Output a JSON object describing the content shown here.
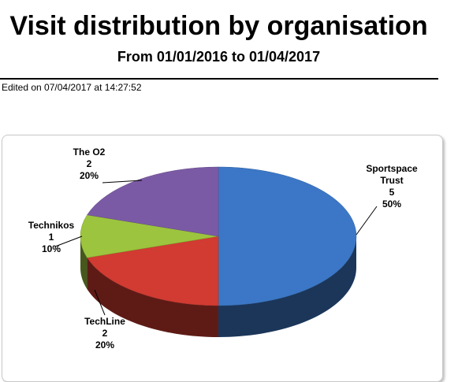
{
  "chart_data": {
    "type": "pie3d",
    "title": "Visit distribution by organisation",
    "subtitle": "From 01/01/2016 to 01/04/2017",
    "edited": "Edited on 07/04/2017 at 14:27:52",
    "categories": [
      "Sportspace Trust",
      "TechLine",
      "Technikos",
      "The O2"
    ],
    "values": [
      5,
      2,
      1,
      2
    ],
    "shares": [
      50,
      20,
      10,
      20
    ],
    "share_labels": [
      "50%",
      "20%",
      "10%",
      "20%"
    ],
    "colors": [
      "#3b77c6",
      "#d13b31",
      "#9cc43e",
      "#7b5aa5"
    ]
  }
}
